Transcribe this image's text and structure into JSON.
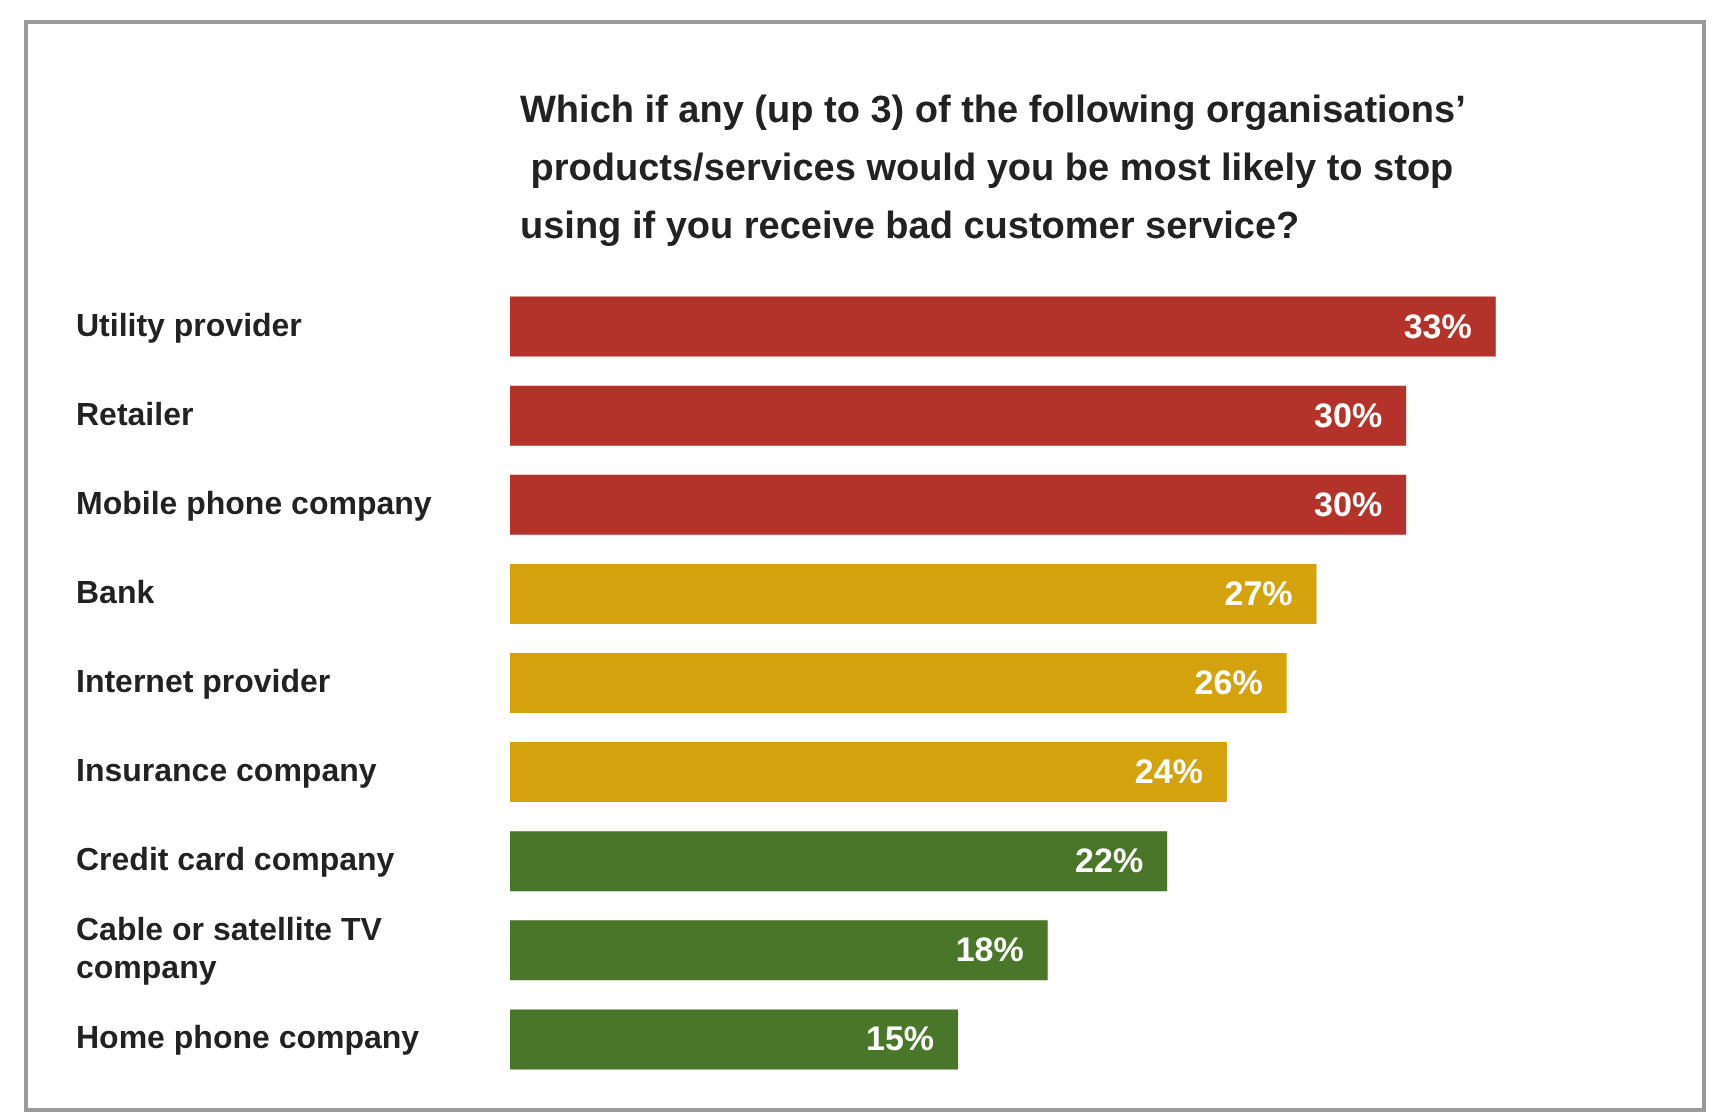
{
  "chart_data": {
    "type": "bar",
    "orientation": "horizontal",
    "title": "Which if any (up to 3) of the following organisations’ products/services would you be most likely to stop using if you receive bad customer service?",
    "categories": [
      "Utility provider",
      "Retailer",
      "Mobile phone company",
      "Bank",
      "Internet provider",
      "Insurance company",
      "Credit card company",
      "Cable or satellite TV company",
      "Home phone company"
    ],
    "values": [
      33,
      30,
      30,
      27,
      26,
      24,
      22,
      18,
      15
    ],
    "value_labels": [
      "33%",
      "30%",
      "30%",
      "27%",
      "26%",
      "24%",
      "22%",
      "18%",
      "15%"
    ],
    "colors": [
      "#b3332a",
      "#b3332a",
      "#b3332a",
      "#d4a20c",
      "#d4a20c",
      "#d4a20c",
      "#4a7629",
      "#4a7629",
      "#4a7629"
    ]
  }
}
